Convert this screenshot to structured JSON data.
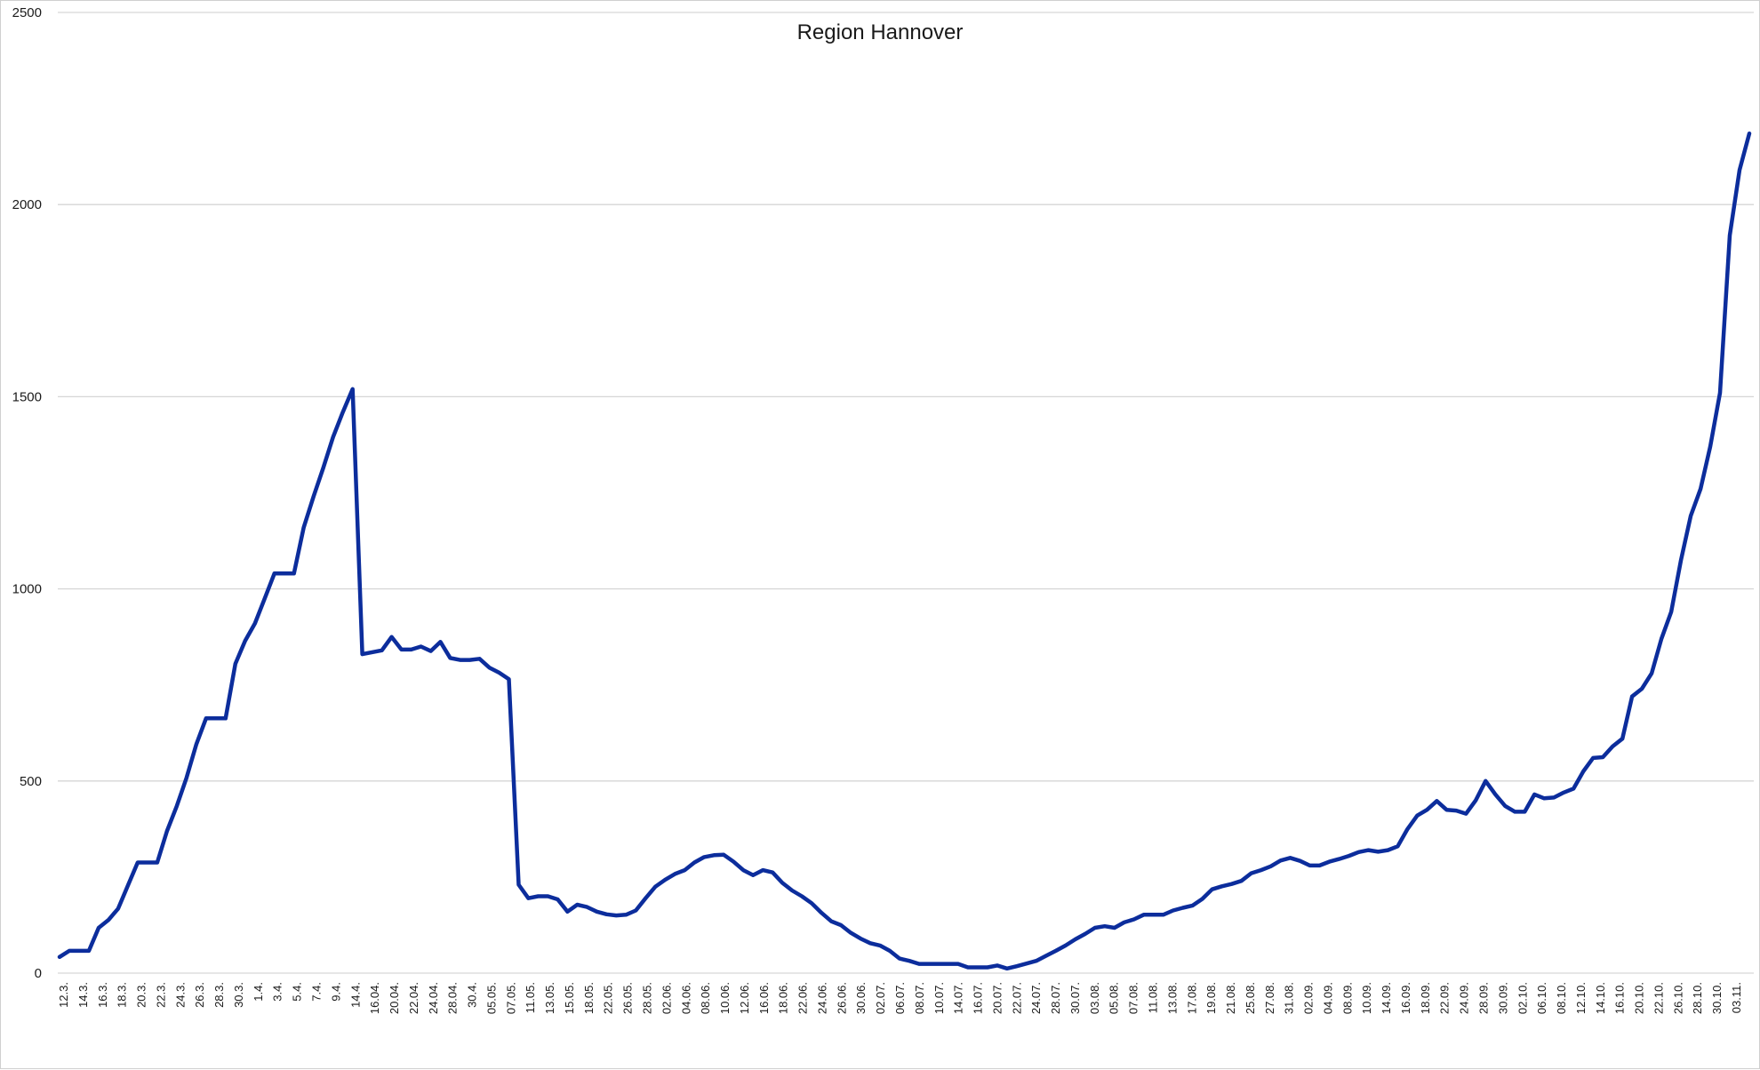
{
  "chart_data": {
    "type": "line",
    "title": "Region Hannover",
    "xlabel": "",
    "ylabel": "",
    "ylim": [
      0,
      2500
    ],
    "yticks": [
      0,
      500,
      1000,
      1500,
      2000,
      2500
    ],
    "grid": true,
    "legend": "none",
    "colors": {
      "line": "#0c2d9c",
      "grid": "#d6d6d6",
      "text": "#1a1a1a"
    },
    "x_tick_labels": [
      "12.3.",
      "14.3.",
      "16.3.",
      "18.3.",
      "20.3.",
      "22.3.",
      "24.3.",
      "26.3.",
      "28.3.",
      "30.3.",
      "1.4.",
      "3.4.",
      "5.4.",
      "7.4.",
      "9.4.",
      "14.4.",
      "16.04.",
      "20.04.",
      "22.04.",
      "24.04.",
      "28.04.",
      "30.4.",
      "05.05.",
      "07.05.",
      "11.05.",
      "13.05.",
      "15.05.",
      "18.05.",
      "22.05.",
      "26.05.",
      "28.05.",
      "02.06.",
      "04.06.",
      "08.06.",
      "10.06.",
      "12.06.",
      "16.06.",
      "18.06.",
      "22.06.",
      "24.06.",
      "26.06.",
      "30.06.",
      "02.07.",
      "06.07.",
      "08.07.",
      "10.07.",
      "14.07.",
      "16.07.",
      "20.07.",
      "22.07.",
      "24.07.",
      "28.07.",
      "30.07.",
      "03.08.",
      "05.08.",
      "07.08.",
      "11.08.",
      "13.08.",
      "17.08.",
      "19.08.",
      "21.08.",
      "25.08.",
      "27.08.",
      "31.08.",
      "02.09.",
      "04.09.",
      "08.09.",
      "10.09.",
      "14.09.",
      "16.09.",
      "18.09.",
      "22.09.",
      "24.09.",
      "28.09.",
      "30.09.",
      "02.10.",
      "06.10.",
      "08.10.",
      "12.10.",
      "14.10.",
      "16.10.",
      "20.10.",
      "22.10.",
      "26.10.",
      "28.10.",
      "30.10.",
      "03.11."
    ],
    "series": [
      {
        "values": [
          42,
          58,
          58,
          58,
          118,
          138,
          168,
          228,
          288,
          288,
          288,
          370,
          435,
          508,
          595,
          663,
          663,
          663,
          805,
          865,
          910,
          975,
          1040,
          1040,
          1040,
          1160,
          1240,
          1315,
          1395,
          1460,
          1520,
          830,
          835,
          840,
          875,
          842,
          842,
          850,
          838,
          862,
          820,
          815,
          815,
          818,
          795,
          782,
          765,
          230,
          195,
          200,
          200,
          192,
          160,
          178,
          172,
          160,
          153,
          150,
          152,
          163,
          195,
          225,
          243,
          258,
          268,
          288,
          302,
          307,
          308,
          290,
          268,
          255,
          268,
          262,
          235,
          215,
          200,
          182,
          157,
          135,
          125,
          105,
          90,
          78,
          72,
          58,
          38,
          32,
          24,
          24,
          24,
          24,
          24,
          15,
          15,
          15,
          20,
          12,
          18,
          25,
          32,
          45,
          58,
          72,
          88,
          102,
          118,
          122,
          118,
          132,
          140,
          152,
          152,
          152,
          163,
          170,
          176,
          193,
          218,
          226,
          232,
          240,
          260,
          268,
          278,
          293,
          300,
          292,
          280,
          280,
          290,
          297,
          305,
          315,
          320,
          316,
          320,
          330,
          375,
          410,
          425,
          448,
          425,
          423,
          415,
          450,
          500,
          465,
          435,
          420,
          420,
          465,
          455,
          457,
          470,
          480,
          525,
          560,
          562,
          590,
          610,
          720,
          740,
          780,
          870,
          940,
          1075,
          1190,
          1260,
          1370,
          1510,
          1920,
          2090,
          2185
        ]
      }
    ]
  }
}
